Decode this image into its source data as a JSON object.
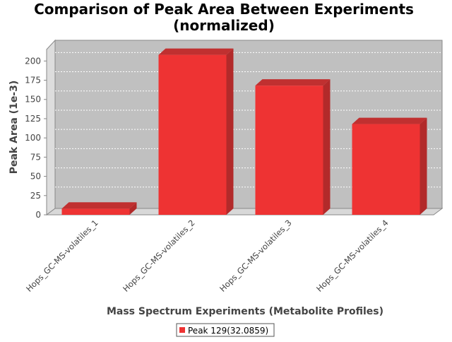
{
  "chart_data": {
    "type": "bar",
    "title_line1": "Comparison of Peak Area Between Experiments",
    "title_line2": "(normalized)",
    "xlabel": "Mass Spectrum Experiments (Metabolite Profiles)",
    "ylabel": "Peak Area (1e-3)",
    "categories": [
      "Hops_GC-MS-volatiles_1",
      "Hops_GC-MS-volatiles_2",
      "Hops_GC-MS-volatiles_3",
      "Hops_GC-MS-volatiles_4"
    ],
    "series": [
      {
        "name": "Peak 129(32.0859)",
        "values": [
          8,
          208,
          168,
          118
        ],
        "color": "#EE3333"
      }
    ],
    "yticks": [
      0,
      25,
      50,
      75,
      100,
      125,
      150,
      175,
      200
    ],
    "ylim": [
      0,
      215
    ],
    "grid": true,
    "legend_position": "bottom",
    "plot_background": "#C0C0C0"
  }
}
